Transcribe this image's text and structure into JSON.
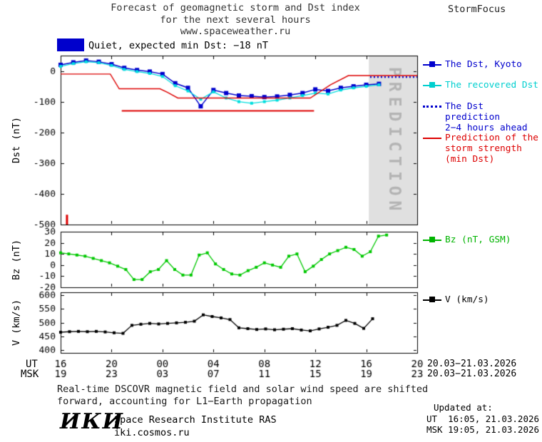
{
  "header": {
    "title_line1": "Forecast of geomagnetic storm and Dst index",
    "title_line2": "for the next several hours",
    "title_line3": "www.spaceweather.ru",
    "brand": "StormFocus"
  },
  "status": {
    "box_color": "#0000cc",
    "label": "Quiet, expected min Dst: −18 nT"
  },
  "legend_main": [
    {
      "label": "The Dst, Kyoto",
      "color": "#0000cd",
      "style": "square-line"
    },
    {
      "label": "The recovered Dst",
      "color": "#00cfcf",
      "style": "square-line"
    },
    {
      "label": "The Dst prediction\n2−4 hours ahead",
      "color": "#0000cd",
      "style": "dotted"
    },
    {
      "label": "Prediction of the\nstorm strength\n(min Dst)",
      "color": "#dd0000",
      "style": "line"
    }
  ],
  "legend_bz": {
    "label": "Bz (nT, GSM)",
    "color": "#00b400"
  },
  "legend_v": {
    "label": "V (km/s)",
    "color": "#000000"
  },
  "prediction_zone": {
    "label": "PREDICTION",
    "band_color": "#e0e0e0",
    "text_color": "#b4b4b4"
  },
  "xaxis": {
    "ut_label": "UT",
    "msk_label": "MSK",
    "tick_hours": [
      0,
      4,
      8,
      12,
      16,
      20,
      24,
      28
    ],
    "ut_ticks": [
      "16",
      "20",
      "00",
      "04",
      "08",
      "12",
      "16",
      "20"
    ],
    "msk_ticks": [
      "19",
      "23",
      "03",
      "07",
      "11",
      "15",
      "19",
      "23"
    ],
    "ut_date": "20.03−21.03.2026",
    "msk_date": "20.03−21.03.2026"
  },
  "footer": {
    "note_line1": "Real-time DSCOVR magnetic field and solar wind speed are shifted",
    "note_line2": "forward, accounting for L1−Earth propagation",
    "logo": "ИКИ",
    "institute": "Space Research Institute RAS",
    "website": "iki.cosmos.ru",
    "updated_label": "Updated at:",
    "updated_ut": "UT  16:05, 21.03.2026",
    "updated_msk": "MSK 19:05, 21.03.2026"
  },
  "chart_data": [
    {
      "type": "line",
      "panel": "dst",
      "title": "Forecast of geomagnetic storm and Dst index for the next several hours",
      "ylabel": "Dst (nT)",
      "x_unit": "hours since 20.03.2026 16:00 UT",
      "xlim": [
        0,
        28
      ],
      "ylim": [
        -500,
        50
      ],
      "yticks": [
        0,
        -100,
        -200,
        -300,
        -400,
        -500
      ],
      "prediction_band_start_hour": 24.2,
      "series": [
        {
          "name": "The Dst, Kyoto",
          "color": "#0000cd",
          "marker": "square",
          "marker_size": 6,
          "width": 1.5,
          "x_start": 0,
          "x_step": 1,
          "y": [
            20,
            28,
            34,
            30,
            22,
            10,
            3,
            -2,
            -10,
            -40,
            -55,
            -115,
            -62,
            -72,
            -80,
            -82,
            -85,
            -83,
            -78,
            -72,
            -60,
            -65,
            -55,
            -50,
            -45,
            -42
          ]
        },
        {
          "name": "The recovered Dst",
          "color": "#00dede",
          "marker": "square",
          "marker_size": 4,
          "width": 1.3,
          "x_start": 0,
          "x_step": 1,
          "y": [
            15,
            24,
            30,
            27,
            18,
            5,
            -2,
            -8,
            -18,
            -48,
            -65,
            -92,
            -68,
            -88,
            -100,
            -105,
            -100,
            -95,
            -88,
            -80,
            -72,
            -75,
            -62,
            -55,
            -50,
            -45
          ]
        },
        {
          "name": "The Dst prediction 2−4 hours ahead",
          "color": "#0000cd",
          "style": "dotted",
          "x": [
            24.3,
            28
          ],
          "y": [
            -20,
            -20
          ]
        },
        {
          "name": "Prediction of the storm strength",
          "color": "#dd0000",
          "width": 1.4,
          "x": [
            0,
            3.9,
            4.6,
            7.8,
            8.4,
            9.2,
            19.6,
            21.2,
            22.6,
            28
          ],
          "y": [
            -10,
            -10,
            -58,
            -58,
            -70,
            -88,
            -88,
            -45,
            -15,
            -15
          ]
        },
        {
          "name": "Predicted min Dst level",
          "color": "#dd0000",
          "width": 2,
          "x": [
            4.8,
            19.9
          ],
          "y": [
            -130,
            -130
          ]
        }
      ],
      "event_mark": {
        "x": 0.5,
        "y_from": -500,
        "y_to": -468,
        "color": "#dd0000"
      }
    },
    {
      "type": "line",
      "panel": "bz",
      "ylabel": "Bz (nT)",
      "x_unit": "hours since 20.03.2026 16:00 UT",
      "xlim": [
        0,
        28
      ],
      "ylim": [
        -20,
        30
      ],
      "yticks": [
        30,
        20,
        10,
        0,
        -10,
        -20
      ],
      "series": [
        {
          "name": "Bz (nT, GSM)",
          "color": "#00c800",
          "marker": "square",
          "marker_size": 4,
          "width": 1.3,
          "x_start": 0,
          "x_step": 0.64,
          "y": [
            11,
            10,
            9,
            8,
            6,
            4,
            2,
            -1,
            -4,
            -13,
            -13,
            -6,
            -4,
            4,
            -4,
            -9,
            -9,
            9,
            11,
            1,
            -4,
            -8,
            -9,
            -5,
            -2,
            2,
            0,
            -2,
            8,
            10,
            -6,
            -1,
            5,
            10,
            13,
            16,
            14,
            8,
            12,
            26,
            27
          ]
        }
      ]
    },
    {
      "type": "line",
      "panel": "v",
      "ylabel": "V (km/s)",
      "x_unit": "hours since 20.03.2026 16:00 UT",
      "xlim": [
        0,
        28
      ],
      "ylim": [
        390,
        610
      ],
      "yticks": [
        600,
        550,
        500,
        450,
        400
      ],
      "series": [
        {
          "name": "V (km/s)",
          "color": "#000000",
          "marker": "square",
          "marker_size": 4,
          "width": 1.3,
          "x_start": 0,
          "x_step": 0.7,
          "y": [
            465,
            467,
            468,
            467,
            468,
            466,
            463,
            461,
            490,
            494,
            497,
            495,
            497,
            499,
            501,
            505,
            528,
            522,
            517,
            511,
            481,
            478,
            475,
            477,
            474,
            476,
            478,
            473,
            470,
            477,
            483,
            490,
            508,
            497,
            479,
            514
          ]
        }
      ]
    }
  ]
}
